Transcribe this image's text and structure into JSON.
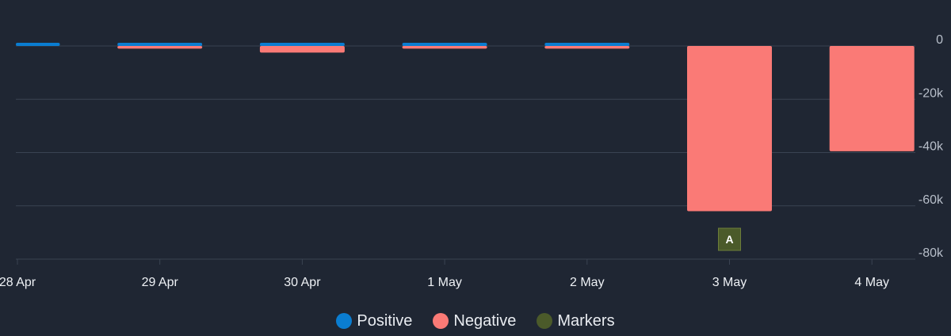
{
  "chart_data": {
    "type": "bar",
    "categories": [
      "28 Apr",
      "29 Apr",
      "30 Apr",
      "1 May",
      "2 May",
      "3 May",
      "4 May"
    ],
    "series": [
      {
        "name": "Positive",
        "values": [
          500,
          1000,
          1000,
          600,
          1000,
          0,
          0
        ]
      },
      {
        "name": "Negative",
        "values": [
          0,
          -1000,
          -2500,
          -1000,
          -1000,
          -62000,
          -39500
        ]
      }
    ],
    "markers": [
      {
        "category": "3 May",
        "label": "A"
      }
    ],
    "ylim": [
      -80000,
      0
    ],
    "yticks": [
      0,
      -20000,
      -40000,
      -60000,
      -80000
    ],
    "ytick_labels": [
      "0",
      "-20k",
      "-40k",
      "-60k",
      "-80k"
    ],
    "y_axis_side": "right",
    "grid": true,
    "legend_position": "bottom"
  },
  "legend": [
    {
      "label": "Positive",
      "color": "#0a7dd1"
    },
    {
      "label": "Negative",
      "color": "#fa7a76"
    },
    {
      "label": "Markers",
      "color": "#4b5a2a"
    }
  ],
  "colors": {
    "background": "#1f2633",
    "gridline": "#3a4352",
    "axis_text": "#b8bfca",
    "x_label_text": "#eef1f5",
    "marker_fill": "#4b5a2a",
    "marker_border": "#6c7d3a"
  }
}
